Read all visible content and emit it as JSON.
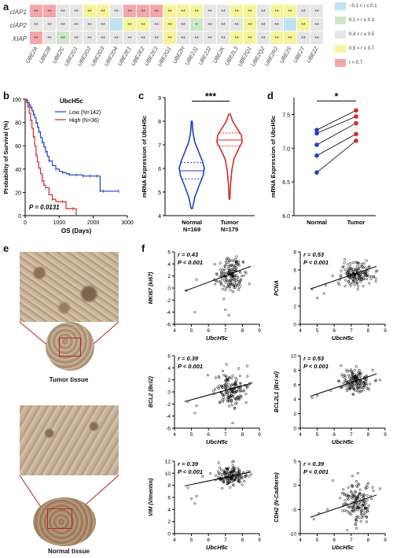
{
  "panels": {
    "a": "a",
    "b": "b",
    "c": "c",
    "d": "d",
    "e": "e",
    "f": "f"
  },
  "colors": {
    "c1": "#f4a6ac",
    "c2": "#f6f49a",
    "c3": "#e6e6e6",
    "c4": "#cfe7c9",
    "c5": "#bfe3f3"
  },
  "heatmap": {
    "rows": [
      "cIAP1",
      "cIAP2",
      "XIAP"
    ],
    "columns": [
      "UBE2A",
      "UBE2B",
      "UBE2C",
      "UBE2D1",
      "UBE2D2",
      "UBE2D3",
      "UBE2D4",
      "UBE2E1",
      "UBE2E2",
      "UBE2E3",
      "UBE2G1",
      "UBE2H",
      "UBE2J1",
      "UBE2J2",
      "UBE2K",
      "UBE2L3",
      "UBE2Q1",
      "UBE2Q2",
      "UBE2R2",
      "UBE2S",
      "UBE2T",
      "UBE2Z"
    ],
    "cells": [
      [
        {
          "c": "c1",
          "t": "**"
        },
        {
          "c": "c1",
          "t": "**"
        },
        {
          "c": "c3",
          "t": "**"
        },
        {
          "c": "c3",
          "t": "**"
        },
        {
          "c": "c2",
          "t": "**"
        },
        {
          "c": "c2",
          "t": "**"
        },
        {
          "c": "c3",
          "t": "**"
        },
        {
          "c": "c1",
          "t": "**"
        },
        {
          "c": "c1",
          "t": "**"
        },
        {
          "c": "c1",
          "t": "**"
        },
        {
          "c": "c2",
          "t": "**"
        },
        {
          "c": "c2",
          "t": "**"
        },
        {
          "c": "c2",
          "t": "**"
        },
        {
          "c": "c3",
          "t": "**"
        },
        {
          "c": "c3",
          "t": "**"
        },
        {
          "c": "c2",
          "t": "**"
        },
        {
          "c": "c2",
          "t": "**"
        },
        {
          "c": "c3",
          "t": "**"
        },
        {
          "c": "c2",
          "t": "**"
        },
        {
          "c": "c2",
          "t": "**"
        },
        {
          "c": "c3",
          "t": "**"
        },
        {
          "c": "c3",
          "t": "**"
        }
      ],
      [
        {
          "c": "c3",
          "t": "**"
        },
        {
          "c": "c3",
          "t": "**"
        },
        {
          "c": "c3",
          "t": "**"
        },
        {
          "c": "c3",
          "t": "**"
        },
        {
          "c": "c3",
          "t": "**"
        },
        {
          "c": "c3",
          "t": "**"
        },
        {
          "c": "c5",
          "t": ""
        },
        {
          "c": "c2",
          "t": "**"
        },
        {
          "c": "c2",
          "t": "**"
        },
        {
          "c": "c3",
          "t": "**"
        },
        {
          "c": "c2",
          "t": "**"
        },
        {
          "c": "c3",
          "t": "**"
        },
        {
          "c": "c4",
          "t": "*"
        },
        {
          "c": "c3",
          "t": "**"
        },
        {
          "c": "c3",
          "t": "**"
        },
        {
          "c": "c3",
          "t": "**"
        },
        {
          "c": "c2",
          "t": "**"
        },
        {
          "c": "c3",
          "t": "**"
        },
        {
          "c": "c3",
          "t": "**"
        },
        {
          "c": "c5",
          "t": ""
        },
        {
          "c": "c2",
          "t": "**"
        },
        {
          "c": "c3",
          "t": "**"
        }
      ],
      [
        {
          "c": "c1",
          "t": "**"
        },
        {
          "c": "c3",
          "t": "**"
        },
        {
          "c": "c4",
          "t": "**"
        },
        {
          "c": "c3",
          "t": "**"
        },
        {
          "c": "c3",
          "t": "**"
        },
        {
          "c": "c3",
          "t": "**"
        },
        {
          "c": "c3",
          "t": "**"
        },
        {
          "c": "c3",
          "t": "**"
        },
        {
          "c": "c3",
          "t": "**"
        },
        {
          "c": "c3",
          "t": "**"
        },
        {
          "c": "c2",
          "t": "**"
        },
        {
          "c": "c3",
          "t": "**"
        },
        {
          "c": "c3",
          "t": "**"
        },
        {
          "c": "c3",
          "t": "**"
        },
        {
          "c": "c3",
          "t": "**"
        },
        {
          "c": "c2",
          "t": "**"
        },
        {
          "c": "c2",
          "t": "**"
        },
        {
          "c": "c3",
          "t": "**"
        },
        {
          "c": "c2",
          "t": "**"
        },
        {
          "c": "c2",
          "t": "**"
        },
        {
          "c": "c3",
          "t": "**"
        },
        {
          "c": "c3",
          "t": "**"
        }
      ]
    ],
    "legend": [
      {
        "c": "c5",
        "label": "−0.1 < r ≤ 0.1"
      },
      {
        "c": "c4",
        "label": "0.1 < r ≤ 0.3"
      },
      {
        "c": "c3",
        "label": "0.3 < r ≤ 0.5"
      },
      {
        "c": "c2",
        "label": "0.5 < r ≤ 0.7"
      },
      {
        "c": "c1",
        "label": "r > 0.7"
      }
    ]
  },
  "chart_data": [
    {
      "type": "line",
      "id": "b",
      "title": "UbcH5c",
      "xlabel": "OS (Days)",
      "ylabel": "Probability of Survival (%)",
      "xlim": [
        0,
        3000
      ],
      "ylim": [
        0,
        100
      ],
      "xticks": [
        0,
        1000,
        2000,
        3000
      ],
      "yticks": [
        0,
        20,
        40,
        60,
        80,
        100
      ],
      "annotation": "P = 0.0131",
      "series": [
        {
          "name": "Low (N=142)",
          "color": "#1f3fc4",
          "x": [
            0,
            40,
            80,
            120,
            160,
            200,
            240,
            280,
            320,
            360,
            400,
            450,
            500,
            550,
            600,
            650,
            700,
            800,
            900,
            1000,
            1100,
            1200,
            1300,
            1400,
            1500,
            1600,
            1700,
            1800,
            1900,
            2000,
            2100,
            2200,
            2300,
            2500,
            2750
          ],
          "y": [
            100,
            99,
            97,
            95,
            93,
            90,
            87,
            84,
            80,
            76,
            72,
            67,
            63,
            59,
            55,
            51,
            47,
            43,
            40,
            38,
            37,
            36,
            35,
            35,
            35,
            35,
            34,
            34,
            34,
            34,
            34,
            21,
            21,
            21,
            21
          ]
        },
        {
          "name": "High (N=36)",
          "color": "#d22b2b",
          "x": [
            0,
            40,
            80,
            120,
            160,
            200,
            240,
            280,
            320,
            360,
            400,
            450,
            500,
            550,
            600,
            700,
            800,
            900,
            1100,
            1200,
            1400,
            1500
          ],
          "y": [
            100,
            97,
            94,
            88,
            82,
            75,
            68,
            60,
            52,
            46,
            41,
            36,
            30,
            26,
            24,
            18,
            14,
            12,
            12,
            6,
            6,
            0
          ]
        }
      ]
    },
    {
      "type": "violin",
      "id": "c",
      "ylabel": "mRNA Expression of UbcH5c",
      "ylim": [
        4,
        9
      ],
      "yticks": [
        4,
        5,
        6,
        7,
        8,
        9
      ],
      "categories": [
        "Normal",
        "Tumor"
      ],
      "ns": [
        "N=169",
        "N=179"
      ],
      "colors": [
        "#1f3fc4",
        "#d22b2b"
      ],
      "significance": "***",
      "density": [
        [
          [
            4.3,
            0.05
          ],
          [
            4.8,
            0.25
          ],
          [
            5.3,
            0.6
          ],
          [
            5.7,
            0.9
          ],
          [
            6.0,
            1.0
          ],
          [
            6.3,
            0.85
          ],
          [
            6.7,
            0.55
          ],
          [
            7.1,
            0.25
          ],
          [
            7.5,
            0.1
          ],
          [
            8.0,
            0.03
          ]
        ],
        [
          [
            4.7,
            0.03
          ],
          [
            5.3,
            0.08
          ],
          [
            5.9,
            0.18
          ],
          [
            6.4,
            0.35
          ],
          [
            6.8,
            0.7
          ],
          [
            7.1,
            1.0
          ],
          [
            7.4,
            0.95
          ],
          [
            7.7,
            0.6
          ],
          [
            8.0,
            0.25
          ],
          [
            8.3,
            0.06
          ]
        ]
      ],
      "quartiles": [
        [
          5.55,
          5.9,
          6.25
        ],
        [
          6.95,
          7.2,
          7.5
        ]
      ]
    },
    {
      "type": "paired-dot",
      "id": "d",
      "ylabel": "mRNA Expression of UbcH5c",
      "ylim": [
        6.0,
        7.75
      ],
      "yticks": [
        6.0,
        6.5,
        7.0,
        7.5
      ],
      "categories": [
        "Normal",
        "Tumor"
      ],
      "significance": "*",
      "pairs": [
        [
          7.27,
          7.56
        ],
        [
          7.22,
          7.47
        ],
        [
          7.05,
          7.37
        ],
        [
          6.89,
          7.21
        ],
        [
          6.64,
          7.11
        ]
      ]
    },
    {
      "type": "scatter",
      "id": "f1",
      "r": "r = 0.43",
      "p": "P < 0.001",
      "ylabel": "MKI67 (ki67)",
      "xlabel": "UbcH5c",
      "xlim": [
        4,
        9
      ],
      "ylim": [
        -6,
        6
      ],
      "xticks": [
        4,
        5,
        6,
        7,
        8,
        9
      ],
      "yticks": [
        -6,
        -4,
        -2,
        0,
        2,
        4,
        6
      ],
      "center": [
        7.3,
        2.2
      ],
      "spread": [
        0.45,
        1.3
      ],
      "line": [
        [
          4.6,
          -0.5
        ],
        [
          8.5,
          3.6
        ]
      ],
      "extra": [
        [
          4.7,
          -0.4
        ],
        [
          5.2,
          -4
        ],
        [
          5.3,
          1.4
        ],
        [
          7.0,
          -3.6
        ],
        [
          7.2,
          -4.5
        ],
        [
          6.9,
          -1.8
        ]
      ]
    },
    {
      "type": "scatter",
      "id": "f2",
      "r": "r = 0.53",
      "p": "P < 0.001",
      "ylabel": "PCNA",
      "xlabel": "UbcH5c",
      "xlim": [
        4,
        9
      ],
      "ylim": [
        0,
        8
      ],
      "xticks": [
        4,
        5,
        6,
        7,
        8,
        9
      ],
      "yticks": [
        0,
        2,
        4,
        6,
        8
      ],
      "center": [
        7.3,
        5.6
      ],
      "spread": [
        0.45,
        0.7
      ],
      "line": [
        [
          4.6,
          3.9
        ],
        [
          8.5,
          6.4
        ]
      ],
      "extra": [
        [
          4.7,
          3.9
        ],
        [
          5.0,
          2.9
        ],
        [
          5.5,
          4.3
        ],
        [
          5.4,
          3.4
        ]
      ]
    },
    {
      "type": "scatter",
      "id": "f3",
      "r": "r = 0.39",
      "p": "P < 0.001",
      "ylabel": "BCL2 (Bcl2)",
      "xlabel": "UbcH5c",
      "xlim": [
        4,
        9
      ],
      "ylim": [
        -6,
        6
      ],
      "xticks": [
        4,
        5,
        6,
        7,
        8,
        9
      ],
      "yticks": [
        -6,
        -4,
        -2,
        0,
        2,
        4,
        6
      ],
      "center": [
        7.3,
        0.5
      ],
      "spread": [
        0.45,
        1.5
      ],
      "line": [
        [
          4.6,
          -1.6
        ],
        [
          8.5,
          1.4
        ]
      ],
      "extra": [
        [
          4.8,
          -1.6
        ],
        [
          5.3,
          -2.3
        ],
        [
          5.2,
          -3.5
        ]
      ]
    },
    {
      "type": "scatter",
      "id": "f4",
      "r": "r = 0.53",
      "p": "P < 0.001",
      "ylabel": "BCL2L1 (Bcl-xl)",
      "xlabel": "UbcH5c",
      "xlim": [
        4,
        9
      ],
      "ylim": [
        0,
        10
      ],
      "xticks": [
        4,
        5,
        6,
        7,
        8,
        9
      ],
      "yticks": [
        0,
        2,
        4,
        6,
        8,
        10
      ],
      "center": [
        7.3,
        6.5
      ],
      "spread": [
        0.45,
        0.8
      ],
      "line": [
        [
          4.6,
          4.4
        ],
        [
          8.5,
          7.5
        ]
      ],
      "extra": [
        [
          4.7,
          4.2
        ],
        [
          5.0,
          4.5
        ],
        [
          5.8,
          5.2
        ]
      ]
    },
    {
      "type": "scatter",
      "id": "f5",
      "r": "r = 0.39",
      "p": "P < 0.001",
      "ylabel": "VIM (Vimentin)",
      "xlabel": "UbcH5c",
      "xlim": [
        4,
        9
      ],
      "ylim": [
        0,
        12
      ],
      "xticks": [
        4,
        5,
        6,
        7,
        8,
        9
      ],
      "yticks": [
        0,
        2,
        4,
        6,
        8,
        10,
        12
      ],
      "center": [
        7.3,
        9.5
      ],
      "spread": [
        0.45,
        0.8
      ],
      "line": [
        [
          4.6,
          7.9
        ],
        [
          8.5,
          10.2
        ]
      ],
      "extra": [
        [
          4.8,
          7.6
        ],
        [
          5.0,
          5.8
        ],
        [
          5.3,
          6.2
        ],
        [
          5.2,
          5.0
        ]
      ]
    },
    {
      "type": "scatter",
      "id": "f6",
      "r": "r = 0.39",
      "p": "P < 0.001",
      "ylabel": "CDH2 (N-Cadherin)",
      "xlabel": "UbcH5c",
      "xlim": [
        4,
        9
      ],
      "ylim": [
        -10,
        5
      ],
      "xticks": [
        4,
        5,
        6,
        7,
        8,
        9
      ],
      "yticks": [
        -10,
        -5,
        0,
        5
      ],
      "center": [
        7.3,
        -3.5
      ],
      "spread": [
        0.45,
        2.0
      ],
      "line": [
        [
          4.6,
          -6.6
        ],
        [
          8.5,
          -2.0
        ]
      ],
      "extra": [
        [
          4.8,
          -7
        ],
        [
          5.1,
          -5.8
        ],
        [
          5.6,
          -5
        ]
      ]
    }
  ],
  "tissue": {
    "tumor_label": "Tumor tissue",
    "normal_label": "Normal tissue"
  }
}
